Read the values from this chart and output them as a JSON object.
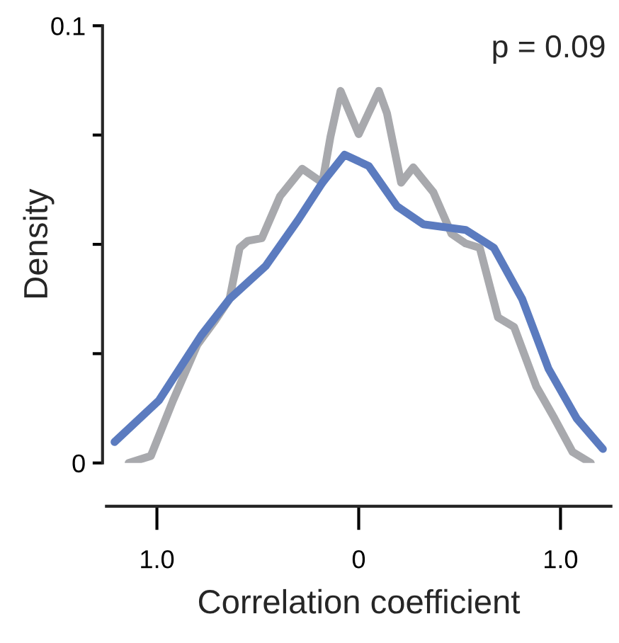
{
  "chart_data": {
    "type": "line",
    "xlabel": "Correlation coefficient",
    "ylabel": "Density",
    "annotations": [
      "p = 0.09"
    ],
    "xlim": [
      -1.25,
      1.25
    ],
    "ylim": [
      0,
      0.1
    ],
    "xticks": [
      {
        "value": -1,
        "label": "1.0"
      },
      0,
      {
        "value": 1,
        "label": "1.0"
      }
    ],
    "yticks": [
      0,
      {
        "value": 0.025,
        "label": null
      },
      {
        "value": 0.05,
        "label": null
      },
      {
        "value": 0.075,
        "label": null
      },
      0.1
    ],
    "grid": false,
    "legend": false,
    "marker": "none",
    "line_style": "solid",
    "series": [
      {
        "color": "#a8a9ad",
        "x": [
          -1.14,
          -1.03,
          -0.92,
          -0.8,
          -0.71,
          -0.64,
          -0.59,
          -0.55,
          -0.48,
          -0.39,
          -0.28,
          -0.18,
          -0.14,
          -0.09,
          0.0,
          0.1,
          0.14,
          0.21,
          0.27,
          0.37,
          0.46,
          0.53,
          0.6,
          0.69,
          0.77,
          0.88,
          0.97,
          1.06,
          1.15
        ],
        "values": [
          0.0,
          0.0016,
          0.0143,
          0.027,
          0.0327,
          0.0375,
          0.0492,
          0.0508,
          0.0514,
          0.061,
          0.0673,
          0.0641,
          0.0746,
          0.0851,
          0.0752,
          0.0851,
          0.08,
          0.0641,
          0.0676,
          0.0619,
          0.0524,
          0.0502,
          0.0492,
          0.0333,
          0.0311,
          0.0175,
          0.0102,
          0.0025,
          0.0
        ]
      },
      {
        "color": "#5b7bbf",
        "x": [
          -1.21,
          -0.99,
          -0.78,
          -0.64,
          -0.46,
          -0.3,
          -0.18,
          -0.07,
          0.05,
          0.19,
          0.32,
          0.53,
          0.67,
          0.81,
          0.94,
          1.08,
          1.21
        ],
        "values": [
          0.0048,
          0.0143,
          0.0292,
          0.0375,
          0.0451,
          0.0556,
          0.0641,
          0.0705,
          0.0679,
          0.0587,
          0.0546,
          0.0533,
          0.0492,
          0.0375,
          0.0216,
          0.0102,
          0.0032
        ]
      }
    ]
  }
}
